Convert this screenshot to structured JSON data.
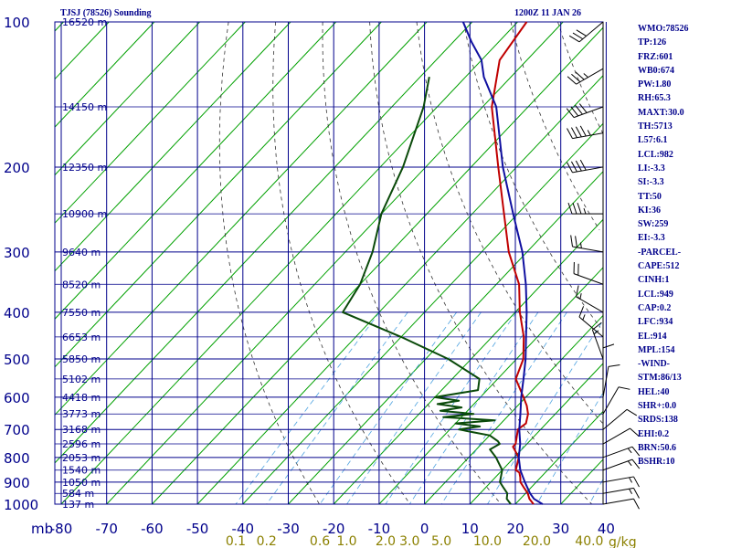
{
  "header": {
    "station_title": "TJSJ (78526) Sounding",
    "time_title": "1200Z 11 JAN 26"
  },
  "indices": [
    "WMO:78526",
    "TP:126",
    "FRZ:601",
    "WB0:674",
    "PW:1.80",
    "RH:65.3",
    "MAXT:30.0",
    "TH:5713",
    "L57:6.1",
    "LCL:982",
    "LI:-3.3",
    "SI:-3.3",
    "TT:50",
    "KI:36",
    "SW:259",
    "EI:-3.3",
    "-PARCEL-",
    "CAPE:512",
    "CINH:1",
    "LCL:949",
    "CAP:0.2",
    "LFC:934",
    "EL:914",
    "MPL:154",
    "-WIND-",
    "STM:86/13",
    "HEL:40",
    "SHR+:0.0",
    "SRDS:138",
    "EHI:0.2",
    "BRN:50.6",
    "BSHR:10"
  ],
  "colors": {
    "grid": "#00008b",
    "isotherm": "#00a000",
    "dry_adiabat": "#333333",
    "mixing_ratio": "#4fa3e0",
    "temperature": "#c00000",
    "dewpoint": "#0a4a0a",
    "parcel": "#1010a0"
  },
  "chart_data": {
    "type": "skew-t",
    "x_unit": "°C",
    "y_unit": "mb",
    "y_scale": "log",
    "ylim": [
      1000,
      100
    ],
    "xlim": [
      -80,
      40
    ],
    "pressure_ticks": [
      100,
      200,
      300,
      400,
      500,
      600,
      700,
      800,
      900,
      1000
    ],
    "pressure_unit_label": "mb",
    "temp_ticks": [
      -80,
      -70,
      -60,
      -50,
      -40,
      -30,
      -20,
      -10,
      0,
      10,
      20,
      30,
      40
    ],
    "height_labels": [
      {
        "p": 100,
        "label": "16520 m"
      },
      {
        "p": 150,
        "label": "14150 m"
      },
      {
        "p": 200,
        "label": "12350 m"
      },
      {
        "p": 250,
        "label": "10900 m"
      },
      {
        "p": 300,
        "label": "9640 m"
      },
      {
        "p": 350,
        "label": "8520 m"
      },
      {
        "p": 400,
        "label": "7550 m"
      },
      {
        "p": 450,
        "label": "6653 m"
      },
      {
        "p": 500,
        "label": "5850 m"
      },
      {
        "p": 550,
        "label": "5102 m"
      },
      {
        "p": 600,
        "label": "4418 m"
      },
      {
        "p": 650,
        "label": "3773 m"
      },
      {
        "p": 700,
        "label": "3168 m"
      },
      {
        "p": 750,
        "label": "2596 m"
      },
      {
        "p": 800,
        "label": "2053 m"
      },
      {
        "p": 850,
        "label": "1540 m"
      },
      {
        "p": 900,
        "label": "1050 m"
      },
      {
        "p": 950,
        "label": "584 m"
      },
      {
        "p": 1000,
        "label": "137 m"
      }
    ],
    "mixing_ratio_labels": [
      {
        "w": 0.1,
        "label": "0.1"
      },
      {
        "w": 0.2,
        "label": "0.2"
      },
      {
        "w": 0.6,
        "label": "0.6"
      },
      {
        "w": 1.0,
        "label": "1.0"
      },
      {
        "w": 2.0,
        "label": "2.0"
      },
      {
        "w": 3.0,
        "label": "3.0"
      },
      {
        "w": 5.0,
        "label": "5.0"
      },
      {
        "w": 10.0,
        "label": "10.0"
      },
      {
        "w": 20.0,
        "label": "20.0"
      },
      {
        "w": 40.0,
        "label": "40.0"
      }
    ],
    "mixing_ratio_unit": "g/kg",
    "isotherm_range": [
      -180,
      40
    ],
    "dry_adiabat_thetas": [
      250,
      270,
      290,
      310,
      330,
      350,
      370,
      390,
      410,
      430,
      450,
      470
    ],
    "series": [
      {
        "name": "temperature",
        "points": [
          [
            1000,
            24
          ],
          [
            975,
            22
          ],
          [
            950,
            20.5
          ],
          [
            925,
            18.5
          ],
          [
            900,
            16.5
          ],
          [
            880,
            15.5
          ],
          [
            860,
            14.3
          ],
          [
            850,
            13
          ],
          [
            800,
            11
          ],
          [
            760,
            7.5
          ],
          [
            750,
            7.5
          ],
          [
            700,
            5
          ],
          [
            680,
            5.5
          ],
          [
            650,
            4
          ],
          [
            625,
            2
          ],
          [
            600,
            -0.5
          ],
          [
            550,
            -6
          ],
          [
            500,
            -8.5
          ],
          [
            450,
            -13
          ],
          [
            400,
            -19
          ],
          [
            350,
            -25
          ],
          [
            300,
            -34
          ],
          [
            250,
            -43
          ],
          [
            200,
            -54
          ],
          [
            150,
            -68
          ],
          [
            120,
            -76
          ],
          [
            100,
            -78
          ]
        ]
      },
      {
        "name": "dewpoint",
        "points": [
          [
            1000,
            19
          ],
          [
            975,
            17
          ],
          [
            950,
            16
          ],
          [
            925,
            14
          ],
          [
            900,
            12
          ],
          [
            850,
            10
          ],
          [
            800,
            6
          ],
          [
            770,
            3
          ],
          [
            750,
            4
          ],
          [
            740,
            3
          ],
          [
            720,
            0
          ],
          [
            710,
            -4
          ],
          [
            700,
            -8
          ],
          [
            690,
            -4
          ],
          [
            680,
            -10
          ],
          [
            670,
            -2
          ],
          [
            660,
            -14
          ],
          [
            650,
            -8
          ],
          [
            640,
            -16
          ],
          [
            630,
            -12
          ],
          [
            620,
            -18
          ],
          [
            610,
            -14
          ],
          [
            600,
            -20
          ],
          [
            580,
            -12
          ],
          [
            550,
            -14
          ],
          [
            500,
            -25
          ],
          [
            450,
            -40
          ],
          [
            400,
            -58
          ],
          [
            350,
            -60
          ],
          [
            300,
            -64
          ],
          [
            250,
            -70
          ],
          [
            200,
            -75
          ],
          [
            150,
            -83
          ],
          [
            130,
            -88
          ]
        ]
      },
      {
        "name": "parcel",
        "points": [
          [
            1000,
            26
          ],
          [
            975,
            23
          ],
          [
            950,
            21
          ],
          [
            900,
            17.5
          ],
          [
            850,
            14
          ],
          [
            800,
            11
          ],
          [
            750,
            8.5
          ],
          [
            700,
            5.3
          ],
          [
            650,
            2.3
          ],
          [
            600,
            -1
          ],
          [
            550,
            -4.3
          ],
          [
            500,
            -8
          ],
          [
            450,
            -12.5
          ],
          [
            400,
            -17.5
          ],
          [
            350,
            -23.5
          ],
          [
            300,
            -31
          ],
          [
            250,
            -41
          ],
          [
            200,
            -53
          ],
          [
            150,
            -67
          ],
          [
            130,
            -76
          ],
          [
            120,
            -80
          ],
          [
            110,
            -86
          ],
          [
            100,
            -92
          ]
        ]
      }
    ],
    "wind_barbs": [
      {
        "p": 1000,
        "dir": 80,
        "spd": 10
      },
      {
        "p": 950,
        "dir": 80,
        "spd": 15
      },
      {
        "p": 900,
        "dir": 80,
        "spd": 15
      },
      {
        "p": 850,
        "dir": 70,
        "spd": 15
      },
      {
        "p": 800,
        "dir": 70,
        "spd": 15
      },
      {
        "p": 750,
        "dir": 60,
        "spd": 10
      },
      {
        "p": 700,
        "dir": 50,
        "spd": 10
      },
      {
        "p": 650,
        "dir": 30,
        "spd": 10
      },
      {
        "p": 600,
        "dir": 10,
        "spd": 10
      },
      {
        "p": 550,
        "dir": 360,
        "spd": 10
      },
      {
        "p": 500,
        "dir": 340,
        "spd": 15
      },
      {
        "p": 450,
        "dir": 310,
        "spd": 15
      },
      {
        "p": 400,
        "dir": 300,
        "spd": 15
      },
      {
        "p": 350,
        "dir": 290,
        "spd": 20
      },
      {
        "p": 300,
        "dir": 280,
        "spd": 25
      },
      {
        "p": 250,
        "dir": 270,
        "spd": 35
      },
      {
        "p": 200,
        "dir": 260,
        "spd": 40
      },
      {
        "p": 170,
        "dir": 260,
        "spd": 45
      },
      {
        "p": 150,
        "dir": 250,
        "spd": 40
      },
      {
        "p": 125,
        "dir": 240,
        "spd": 35
      },
      {
        "p": 100,
        "dir": 230,
        "spd": 30
      }
    ]
  }
}
